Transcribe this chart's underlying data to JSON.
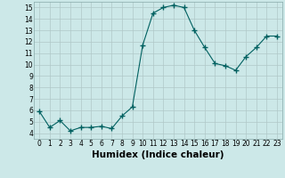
{
  "x": [
    0,
    1,
    2,
    3,
    4,
    5,
    6,
    7,
    8,
    9,
    10,
    11,
    12,
    13,
    14,
    15,
    16,
    17,
    18,
    19,
    20,
    21,
    22,
    23
  ],
  "y": [
    5.9,
    4.5,
    5.1,
    4.2,
    4.5,
    4.5,
    4.6,
    4.4,
    5.5,
    6.3,
    11.7,
    14.5,
    15.0,
    15.2,
    15.0,
    13.0,
    11.5,
    10.1,
    9.9,
    9.5,
    10.7,
    11.5,
    12.5,
    12.5
  ],
  "line_color": "#006060",
  "marker": "+",
  "marker_size": 4,
  "bg_color": "#cce8e8",
  "grid_color": "#b0c8c8",
  "xlabel": "Humidex (Indice chaleur)",
  "xlim": [
    -0.5,
    23.5
  ],
  "ylim": [
    3.5,
    15.5
  ],
  "yticks": [
    4,
    5,
    6,
    7,
    8,
    9,
    10,
    11,
    12,
    13,
    14,
    15
  ],
  "xticks": [
    0,
    1,
    2,
    3,
    4,
    5,
    6,
    7,
    8,
    9,
    10,
    11,
    12,
    13,
    14,
    15,
    16,
    17,
    18,
    19,
    20,
    21,
    22,
    23
  ],
  "tick_fontsize": 5.5,
  "label_fontsize": 7.5
}
